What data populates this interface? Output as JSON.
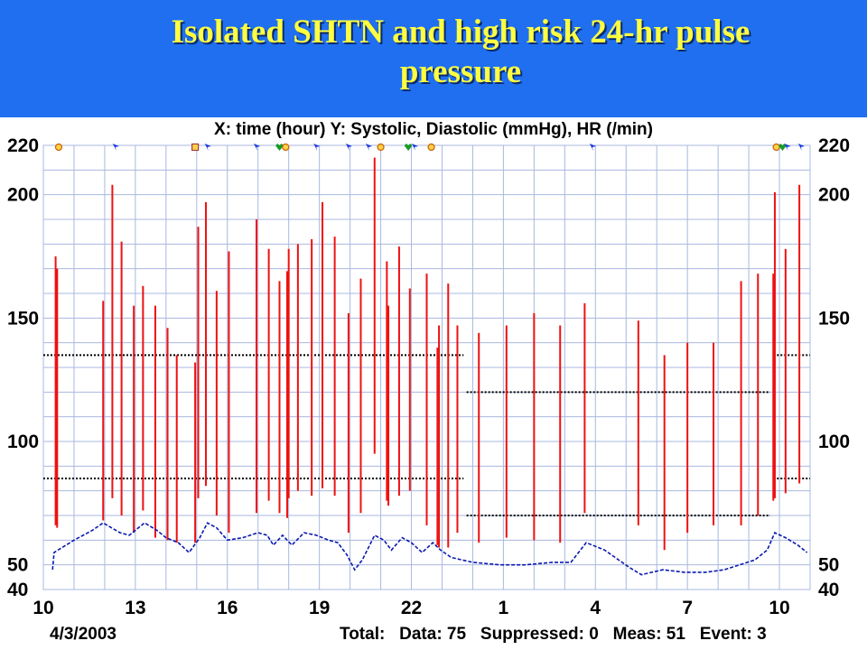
{
  "header": {
    "title_line1": "Isolated SHTN and high risk 24-hr pulse",
    "title_line2": "pressure",
    "background": "#1f6ff0",
    "title_color": "#ffff40"
  },
  "chart_data": {
    "type": "bar",
    "title": "X: time (hour)  Y: Systolic, Diastolic (mmHg), HR (/min)",
    "xlabel": "time (hour)",
    "ylabel": "Systolic, Diastolic (mmHg), HR (/min)",
    "x_ticks": [
      {
        "t": 10,
        "label": "10"
      },
      {
        "t": 13,
        "label": "13"
      },
      {
        "t": 16,
        "label": "16"
      },
      {
        "t": 19,
        "label": "19"
      },
      {
        "t": 22,
        "label": "22"
      },
      {
        "t": 25,
        "label": "1"
      },
      {
        "t": 28,
        "label": "4"
      },
      {
        "t": 31,
        "label": "7"
      },
      {
        "t": 34,
        "label": "10"
      }
    ],
    "xlim": [
      10,
      35
    ],
    "y_ticks": [
      40,
      50,
      100,
      150,
      200,
      220
    ],
    "ylim": [
      40,
      220
    ],
    "grid": true,
    "colors": {
      "bp": "#ee1111",
      "hr": "#0a1ab0",
      "grid": "#aab8e0",
      "threshold": "#000000"
    },
    "series": [
      {
        "name": "Systolic / Diastolic",
        "points": [
          {
            "t": 10.4,
            "sys": 175,
            "dia": 66
          },
          {
            "t": 10.45,
            "sys": 170,
            "dia": 65
          },
          {
            "t": 11.95,
            "sys": 157,
            "dia": 68
          },
          {
            "t": 12.25,
            "sys": 204,
            "dia": 77
          },
          {
            "t": 12.55,
            "sys": 181,
            "dia": 70
          },
          {
            "t": 12.95,
            "sys": 155,
            "dia": 63
          },
          {
            "t": 13.25,
            "sys": 163,
            "dia": 72
          },
          {
            "t": 13.65,
            "sys": 155,
            "dia": 61
          },
          {
            "t": 14.05,
            "sys": 146,
            "dia": 60
          },
          {
            "t": 14.35,
            "sys": 135,
            "dia": 59
          },
          {
            "t": 14.95,
            "sys": 132,
            "dia": 59
          },
          {
            "t": 15.05,
            "sys": 187,
            "dia": 77
          },
          {
            "t": 15.3,
            "sys": 197,
            "dia": 82
          },
          {
            "t": 15.65,
            "sys": 161,
            "dia": 70
          },
          {
            "t": 16.05,
            "sys": 177,
            "dia": 63
          },
          {
            "t": 16.95,
            "sys": 190,
            "dia": 71
          },
          {
            "t": 17.35,
            "sys": 178,
            "dia": 76
          },
          {
            "t": 17.7,
            "sys": 165,
            "dia": 71
          },
          {
            "t": 17.95,
            "sys": 169,
            "dia": 69
          },
          {
            "t": 18.0,
            "sys": 178,
            "dia": 77
          },
          {
            "t": 18.3,
            "sys": 180,
            "dia": 80
          },
          {
            "t": 18.75,
            "sys": 182,
            "dia": 78
          },
          {
            "t": 19.1,
            "sys": 197,
            "dia": 81
          },
          {
            "t": 19.5,
            "sys": 183,
            "dia": 78
          },
          {
            "t": 19.95,
            "sys": 152,
            "dia": 63
          },
          {
            "t": 20.35,
            "sys": 166,
            "dia": 71
          },
          {
            "t": 20.8,
            "sys": 215,
            "dia": 95
          },
          {
            "t": 21.2,
            "sys": 173,
            "dia": 76
          },
          {
            "t": 21.25,
            "sys": 155,
            "dia": 74
          },
          {
            "t": 21.6,
            "sys": 179,
            "dia": 78
          },
          {
            "t": 21.95,
            "sys": 162,
            "dia": 80
          },
          {
            "t": 22.5,
            "sys": 168,
            "dia": 66
          },
          {
            "t": 22.85,
            "sys": 138,
            "dia": 58
          },
          {
            "t": 22.9,
            "sys": 147,
            "dia": 57
          },
          {
            "t": 23.2,
            "sys": 164,
            "dia": 57
          },
          {
            "t": 23.5,
            "sys": 147,
            "dia": 63
          },
          {
            "t": 24.2,
            "sys": 144,
            "dia": 59
          },
          {
            "t": 25.1,
            "sys": 147,
            "dia": 61
          },
          {
            "t": 26.0,
            "sys": 152,
            "dia": 60
          },
          {
            "t": 26.85,
            "sys": 147,
            "dia": 59
          },
          {
            "t": 27.65,
            "sys": 156,
            "dia": 71
          },
          {
            "t": 29.4,
            "sys": 149,
            "dia": 66
          },
          {
            "t": 30.25,
            "sys": 135,
            "dia": 56
          },
          {
            "t": 31.0,
            "sys": 140,
            "dia": 63
          },
          {
            "t": 31.85,
            "sys": 140,
            "dia": 66
          },
          {
            "t": 32.75,
            "sys": 165,
            "dia": 66
          },
          {
            "t": 33.3,
            "sys": 168,
            "dia": 70
          },
          {
            "t": 33.8,
            "sys": 168,
            "dia": 76
          },
          {
            "t": 33.85,
            "sys": 201,
            "dia": 77
          },
          {
            "t": 34.2,
            "sys": 178,
            "dia": 79
          },
          {
            "t": 34.65,
            "sys": 204,
            "dia": 83
          }
        ]
      },
      {
        "name": "HR",
        "points": [
          {
            "t": 10.3,
            "v": 48
          },
          {
            "t": 10.35,
            "v": 55
          },
          {
            "t": 11.0,
            "v": 60
          },
          {
            "t": 11.6,
            "v": 64
          },
          {
            "t": 11.95,
            "v": 67
          },
          {
            "t": 12.5,
            "v": 63
          },
          {
            "t": 12.8,
            "v": 62
          },
          {
            "t": 13.3,
            "v": 67
          },
          {
            "t": 13.7,
            "v": 64
          },
          {
            "t": 14.0,
            "v": 61
          },
          {
            "t": 14.4,
            "v": 59
          },
          {
            "t": 14.75,
            "v": 55
          },
          {
            "t": 15.1,
            "v": 61
          },
          {
            "t": 15.35,
            "v": 67
          },
          {
            "t": 15.65,
            "v": 65
          },
          {
            "t": 16.0,
            "v": 60
          },
          {
            "t": 16.5,
            "v": 61
          },
          {
            "t": 17.0,
            "v": 63
          },
          {
            "t": 17.3,
            "v": 62
          },
          {
            "t": 17.5,
            "v": 58
          },
          {
            "t": 17.8,
            "v": 62
          },
          {
            "t": 18.1,
            "v": 58
          },
          {
            "t": 18.5,
            "v": 63
          },
          {
            "t": 18.9,
            "v": 62
          },
          {
            "t": 19.3,
            "v": 60
          },
          {
            "t": 19.6,
            "v": 59
          },
          {
            "t": 19.9,
            "v": 54
          },
          {
            "t": 20.15,
            "v": 48
          },
          {
            "t": 20.4,
            "v": 52
          },
          {
            "t": 20.8,
            "v": 62
          },
          {
            "t": 21.1,
            "v": 60
          },
          {
            "t": 21.35,
            "v": 56
          },
          {
            "t": 21.7,
            "v": 61
          },
          {
            "t": 22.0,
            "v": 59
          },
          {
            "t": 22.35,
            "v": 55
          },
          {
            "t": 22.7,
            "v": 59
          },
          {
            "t": 22.95,
            "v": 56
          },
          {
            "t": 23.3,
            "v": 53
          },
          {
            "t": 24.0,
            "v": 51
          },
          {
            "t": 24.9,
            "v": 50
          },
          {
            "t": 25.7,
            "v": 50
          },
          {
            "t": 26.6,
            "v": 51
          },
          {
            "t": 27.2,
            "v": 51
          },
          {
            "t": 27.7,
            "v": 59
          },
          {
            "t": 28.3,
            "v": 56
          },
          {
            "t": 29.1,
            "v": 49
          },
          {
            "t": 29.5,
            "v": 46
          },
          {
            "t": 30.2,
            "v": 48
          },
          {
            "t": 30.9,
            "v": 47
          },
          {
            "t": 31.6,
            "v": 47
          },
          {
            "t": 32.2,
            "v": 48
          },
          {
            "t": 32.7,
            "v": 50
          },
          {
            "t": 33.2,
            "v": 52
          },
          {
            "t": 33.6,
            "v": 56
          },
          {
            "t": 33.85,
            "v": 63
          },
          {
            "t": 34.2,
            "v": 61
          },
          {
            "t": 34.6,
            "v": 58
          },
          {
            "t": 34.9,
            "v": 55
          }
        ]
      }
    ],
    "thresholds": [
      {
        "t0": 10,
        "t1": 23.7,
        "v": 135
      },
      {
        "t0": 10,
        "t1": 23.7,
        "v": 85
      },
      {
        "t0": 23.8,
        "t1": 33.7,
        "v": 120
      },
      {
        "t0": 23.8,
        "t1": 33.7,
        "v": 70
      },
      {
        "t0": 33.8,
        "t1": 35,
        "v": 135
      },
      {
        "t0": 33.8,
        "t1": 35,
        "v": 85
      }
    ],
    "event_markers": [
      {
        "t": 10.5,
        "kind": "circle"
      },
      {
        "t": 12.35,
        "kind": "flag"
      },
      {
        "t": 14.95,
        "kind": "square"
      },
      {
        "t": 15.35,
        "kind": "flag"
      },
      {
        "t": 16.95,
        "kind": "flag"
      },
      {
        "t": 17.7,
        "kind": "heart"
      },
      {
        "t": 17.9,
        "kind": "circle"
      },
      {
        "t": 18.9,
        "kind": "flag"
      },
      {
        "t": 19.95,
        "kind": "flag"
      },
      {
        "t": 20.6,
        "kind": "flag"
      },
      {
        "t": 21.0,
        "kind": "circle"
      },
      {
        "t": 21.9,
        "kind": "heart"
      },
      {
        "t": 22.1,
        "kind": "flag"
      },
      {
        "t": 22.65,
        "kind": "circle"
      },
      {
        "t": 27.9,
        "kind": "flag"
      },
      {
        "t": 33.9,
        "kind": "circle"
      },
      {
        "t": 34.1,
        "kind": "heart"
      },
      {
        "t": 34.25,
        "kind": "flag"
      },
      {
        "t": 34.7,
        "kind": "flag"
      }
    ]
  },
  "footer": {
    "date": "4/3/2003",
    "stats": "Total:   Data: 75   Suppressed: 0   Meas: 51   Event: 3"
  }
}
